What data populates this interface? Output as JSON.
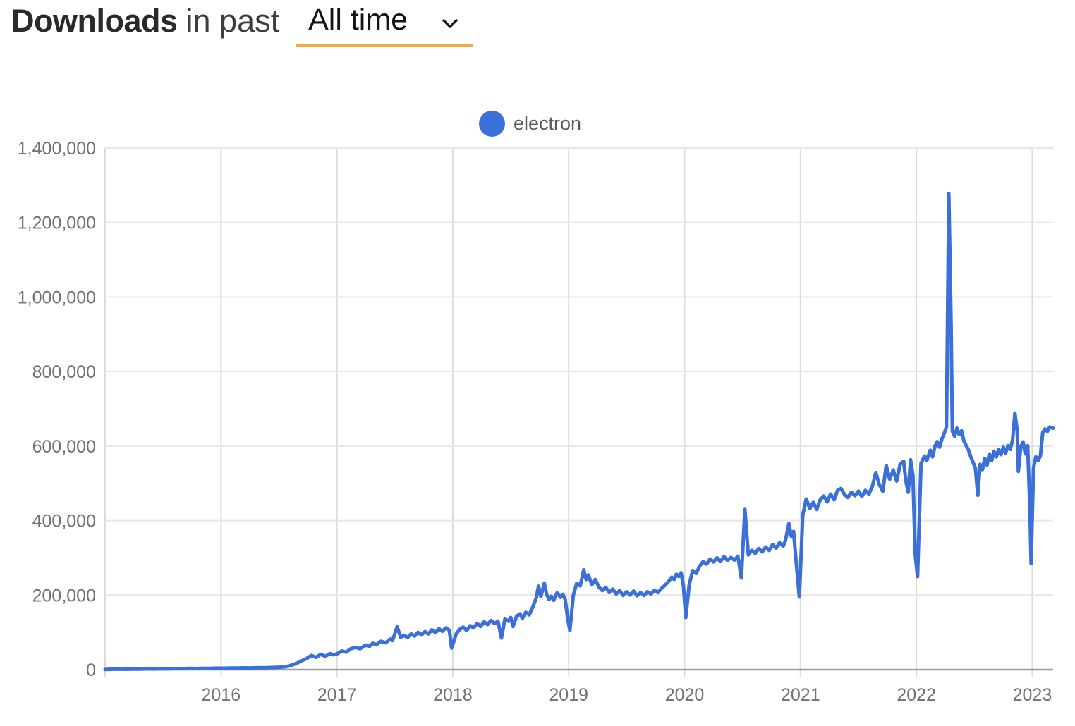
{
  "header": {
    "title_bold": "Downloads",
    "title_rest": "in past",
    "range_selector": {
      "value": "All time"
    }
  },
  "legend": {
    "series_label": "electron",
    "marker_color": "#3b70d8"
  },
  "colors": {
    "line": "#3b70d8",
    "grid_horizontal": "#e6e6e6",
    "grid_vertical": "#dcdcdc",
    "axis_baseline": "#9e9e9e",
    "tick_label": "#717171",
    "underline_accent": "#f5a73b"
  },
  "chart_data": {
    "type": "line",
    "title": "Downloads in past All time",
    "xlabel": "",
    "ylabel": "",
    "legend_position": "top-center",
    "grid": true,
    "xlim": [
      2015.0,
      2023.18
    ],
    "ylim": [
      0,
      1400000
    ],
    "x_ticks": [
      {
        "v": 2015,
        "label": ""
      },
      {
        "v": 2016,
        "label": "2016"
      },
      {
        "v": 2017,
        "label": "2017"
      },
      {
        "v": 2018,
        "label": "2018"
      },
      {
        "v": 2019,
        "label": "2019"
      },
      {
        "v": 2020,
        "label": "2020"
      },
      {
        "v": 2021,
        "label": "2021"
      },
      {
        "v": 2022,
        "label": "2022"
      },
      {
        "v": 2023,
        "label": "2023"
      }
    ],
    "y_ticks": [
      {
        "v": 0,
        "label": "0"
      },
      {
        "v": 200000,
        "label": "200,000"
      },
      {
        "v": 400000,
        "label": "400,000"
      },
      {
        "v": 600000,
        "label": "600,000"
      },
      {
        "v": 800000,
        "label": "800,000"
      },
      {
        "v": 1000000,
        "label": "1,000,000"
      },
      {
        "v": 1200000,
        "label": "1,200,000"
      },
      {
        "v": 1400000,
        "label": "1,400,000"
      }
    ],
    "series": [
      {
        "name": "electron",
        "color": "#3b70d8",
        "points": [
          [
            2015.0,
            500
          ],
          [
            2015.06,
            900
          ],
          [
            2015.12,
            1300
          ],
          [
            2015.18,
            1000
          ],
          [
            2015.24,
            1600
          ],
          [
            2015.3,
            1400
          ],
          [
            2015.36,
            2000
          ],
          [
            2015.42,
            1700
          ],
          [
            2015.48,
            2400
          ],
          [
            2015.54,
            2100
          ],
          [
            2015.6,
            2800
          ],
          [
            2015.66,
            2500
          ],
          [
            2015.72,
            3200
          ],
          [
            2015.78,
            2900
          ],
          [
            2015.84,
            3600
          ],
          [
            2015.9,
            3300
          ],
          [
            2015.96,
            4000
          ],
          [
            2016.02,
            3700
          ],
          [
            2016.08,
            4400
          ],
          [
            2016.14,
            4100
          ],
          [
            2016.2,
            4800
          ],
          [
            2016.26,
            4500
          ],
          [
            2016.32,
            5200
          ],
          [
            2016.38,
            5000
          ],
          [
            2016.44,
            5600
          ],
          [
            2016.5,
            6500
          ],
          [
            2016.56,
            8000
          ],
          [
            2016.61,
            12000
          ],
          [
            2016.66,
            18000
          ],
          [
            2016.7,
            24000
          ],
          [
            2016.74,
            30000
          ],
          [
            2016.78,
            38000
          ],
          [
            2016.82,
            33000
          ],
          [
            2016.86,
            41000
          ],
          [
            2016.9,
            36000
          ],
          [
            2016.94,
            43000
          ],
          [
            2016.97,
            40000
          ],
          [
            2017.0,
            42000
          ],
          [
            2017.04,
            50000
          ],
          [
            2017.08,
            47000
          ],
          [
            2017.12,
            56000
          ],
          [
            2017.16,
            60000
          ],
          [
            2017.2,
            56000
          ],
          [
            2017.25,
            66000
          ],
          [
            2017.28,
            62000
          ],
          [
            2017.31,
            71000
          ],
          [
            2017.34,
            67000
          ],
          [
            2017.38,
            76000
          ],
          [
            2017.42,
            72000
          ],
          [
            2017.46,
            82000
          ],
          [
            2017.48,
            78000
          ],
          [
            2017.52,
            115000
          ],
          [
            2017.55,
            87000
          ],
          [
            2017.58,
            92000
          ],
          [
            2017.61,
            86000
          ],
          [
            2017.64,
            96000
          ],
          [
            2017.67,
            90000
          ],
          [
            2017.7,
            100000
          ],
          [
            2017.73,
            93000
          ],
          [
            2017.76,
            102000
          ],
          [
            2017.79,
            96000
          ],
          [
            2017.82,
            107000
          ],
          [
            2017.85,
            99000
          ],
          [
            2017.88,
            110000
          ],
          [
            2017.91,
            103000
          ],
          [
            2017.94,
            112000
          ],
          [
            2017.97,
            106000
          ],
          [
            2017.99,
            58000
          ],
          [
            2018.03,
            96000
          ],
          [
            2018.06,
            108000
          ],
          [
            2018.09,
            114000
          ],
          [
            2018.12,
            105000
          ],
          [
            2018.15,
            118000
          ],
          [
            2018.18,
            112000
          ],
          [
            2018.21,
            124000
          ],
          [
            2018.24,
            116000
          ],
          [
            2018.27,
            128000
          ],
          [
            2018.3,
            121000
          ],
          [
            2018.33,
            132000
          ],
          [
            2018.36,
            124000
          ],
          [
            2018.39,
            130000
          ],
          [
            2018.42,
            85000
          ],
          [
            2018.45,
            136000
          ],
          [
            2018.48,
            130000
          ],
          [
            2018.5,
            140000
          ],
          [
            2018.52,
            116000
          ],
          [
            2018.55,
            143000
          ],
          [
            2018.58,
            150000
          ],
          [
            2018.6,
            137000
          ],
          [
            2018.63,
            154000
          ],
          [
            2018.66,
            147000
          ],
          [
            2018.69,
            168000
          ],
          [
            2018.72,
            192000
          ],
          [
            2018.74,
            224000
          ],
          [
            2018.76,
            196000
          ],
          [
            2018.79,
            232000
          ],
          [
            2018.81,
            202000
          ],
          [
            2018.83,
            188000
          ],
          [
            2018.85,
            197000
          ],
          [
            2018.87,
            186000
          ],
          [
            2018.9,
            206000
          ],
          [
            2018.93,
            194000
          ],
          [
            2018.95,
            202000
          ],
          [
            2018.97,
            188000
          ],
          [
            2018.99,
            140000
          ],
          [
            2019.01,
            105000
          ],
          [
            2019.04,
            200000
          ],
          [
            2019.07,
            232000
          ],
          [
            2019.1,
            225000
          ],
          [
            2019.13,
            268000
          ],
          [
            2019.15,
            242000
          ],
          [
            2019.17,
            254000
          ],
          [
            2019.2,
            228000
          ],
          [
            2019.23,
            242000
          ],
          [
            2019.26,
            222000
          ],
          [
            2019.29,
            212000
          ],
          [
            2019.32,
            221000
          ],
          [
            2019.35,
            207000
          ],
          [
            2019.38,
            216000
          ],
          [
            2019.41,
            203000
          ],
          [
            2019.44,
            212000
          ],
          [
            2019.47,
            199000
          ],
          [
            2019.5,
            209000
          ],
          [
            2019.53,
            200000
          ],
          [
            2019.56,
            211000
          ],
          [
            2019.59,
            198000
          ],
          [
            2019.62,
            207000
          ],
          [
            2019.65,
            199000
          ],
          [
            2019.68,
            209000
          ],
          [
            2019.71,
            203000
          ],
          [
            2019.74,
            213000
          ],
          [
            2019.77,
            207000
          ],
          [
            2019.8,
            218000
          ],
          [
            2019.83,
            226000
          ],
          [
            2019.86,
            236000
          ],
          [
            2019.89,
            248000
          ],
          [
            2019.91,
            242000
          ],
          [
            2019.93,
            256000
          ],
          [
            2019.95,
            250000
          ],
          [
            2019.97,
            260000
          ],
          [
            2019.99,
            225000
          ],
          [
            2020.01,
            140000
          ],
          [
            2020.04,
            228000
          ],
          [
            2020.07,
            266000
          ],
          [
            2020.1,
            258000
          ],
          [
            2020.13,
            278000
          ],
          [
            2020.16,
            290000
          ],
          [
            2020.19,
            283000
          ],
          [
            2020.22,
            297000
          ],
          [
            2020.25,
            289000
          ],
          [
            2020.28,
            300000
          ],
          [
            2020.31,
            290000
          ],
          [
            2020.34,
            303000
          ],
          [
            2020.37,
            293000
          ],
          [
            2020.4,
            301000
          ],
          [
            2020.43,
            294000
          ],
          [
            2020.46,
            304000
          ],
          [
            2020.49,
            246000
          ],
          [
            2020.52,
            430000
          ],
          [
            2020.55,
            308000
          ],
          [
            2020.58,
            320000
          ],
          [
            2020.61,
            312000
          ],
          [
            2020.64,
            325000
          ],
          [
            2020.67,
            316000
          ],
          [
            2020.7,
            329000
          ],
          [
            2020.73,
            320000
          ],
          [
            2020.76,
            336000
          ],
          [
            2020.79,
            326000
          ],
          [
            2020.82,
            341000
          ],
          [
            2020.85,
            331000
          ],
          [
            2020.87,
            346000
          ],
          [
            2020.9,
            392000
          ],
          [
            2020.92,
            358000
          ],
          [
            2020.94,
            371000
          ],
          [
            2020.96,
            300000
          ],
          [
            2020.99,
            195000
          ],
          [
            2021.02,
            415000
          ],
          [
            2021.05,
            458000
          ],
          [
            2021.08,
            432000
          ],
          [
            2021.11,
            449000
          ],
          [
            2021.14,
            430000
          ],
          [
            2021.17,
            456000
          ],
          [
            2021.2,
            466000
          ],
          [
            2021.23,
            450000
          ],
          [
            2021.26,
            471000
          ],
          [
            2021.29,
            456000
          ],
          [
            2021.32,
            481000
          ],
          [
            2021.35,
            486000
          ],
          [
            2021.38,
            470000
          ],
          [
            2021.41,
            462000
          ],
          [
            2021.44,
            476000
          ],
          [
            2021.47,
            467000
          ],
          [
            2021.5,
            479000
          ],
          [
            2021.53,
            465000
          ],
          [
            2021.56,
            481000
          ],
          [
            2021.59,
            471000
          ],
          [
            2021.62,
            492000
          ],
          [
            2021.65,
            529000
          ],
          [
            2021.68,
            497000
          ],
          [
            2021.71,
            478000
          ],
          [
            2021.74,
            548000
          ],
          [
            2021.77,
            511000
          ],
          [
            2021.8,
            536000
          ],
          [
            2021.83,
            506000
          ],
          [
            2021.86,
            551000
          ],
          [
            2021.89,
            559000
          ],
          [
            2021.91,
            506000
          ],
          [
            2021.93,
            476000
          ],
          [
            2021.95,
            563000
          ],
          [
            2021.97,
            522000
          ],
          [
            2021.99,
            310000
          ],
          [
            2022.01,
            250000
          ],
          [
            2022.04,
            553000
          ],
          [
            2022.07,
            573000
          ],
          [
            2022.09,
            561000
          ],
          [
            2022.12,
            589000
          ],
          [
            2022.14,
            571000
          ],
          [
            2022.16,
            599000
          ],
          [
            2022.18,
            612000
          ],
          [
            2022.2,
            597000
          ],
          [
            2022.22,
            619000
          ],
          [
            2022.24,
            634000
          ],
          [
            2022.26,
            652000
          ],
          [
            2022.28,
            1278000
          ],
          [
            2022.3,
            920000
          ],
          [
            2022.31,
            640000
          ],
          [
            2022.33,
            626000
          ],
          [
            2022.35,
            648000
          ],
          [
            2022.37,
            631000
          ],
          [
            2022.39,
            641000
          ],
          [
            2022.41,
            614000
          ],
          [
            2022.43,
            601000
          ],
          [
            2022.45,
            589000
          ],
          [
            2022.47,
            571000
          ],
          [
            2022.49,
            556000
          ],
          [
            2022.51,
            540000
          ],
          [
            2022.53,
            468000
          ],
          [
            2022.55,
            551000
          ],
          [
            2022.57,
            537000
          ],
          [
            2022.59,
            566000
          ],
          [
            2022.61,
            549000
          ],
          [
            2022.63,
            579000
          ],
          [
            2022.65,
            561000
          ],
          [
            2022.67,
            586000
          ],
          [
            2022.69,
            571000
          ],
          [
            2022.71,
            591000
          ],
          [
            2022.73,
            577000
          ],
          [
            2022.75,
            597000
          ],
          [
            2022.77,
            581000
          ],
          [
            2022.79,
            601000
          ],
          [
            2022.81,
            591000
          ],
          [
            2022.83,
            616000
          ],
          [
            2022.85,
            688000
          ],
          [
            2022.87,
            641000
          ],
          [
            2022.88,
            532000
          ],
          [
            2022.9,
            597000
          ],
          [
            2022.92,
            611000
          ],
          [
            2022.94,
            579000
          ],
          [
            2022.96,
            601000
          ],
          [
            2022.98,
            430000
          ],
          [
            2022.99,
            285000
          ],
          [
            2023.01,
            540000
          ],
          [
            2023.03,
            571000
          ],
          [
            2023.05,
            561000
          ],
          [
            2023.07,
            573000
          ],
          [
            2023.09,
            636000
          ],
          [
            2023.11,
            646000
          ],
          [
            2023.13,
            639000
          ],
          [
            2023.15,
            651000
          ],
          [
            2023.18,
            648000
          ]
        ]
      }
    ]
  }
}
